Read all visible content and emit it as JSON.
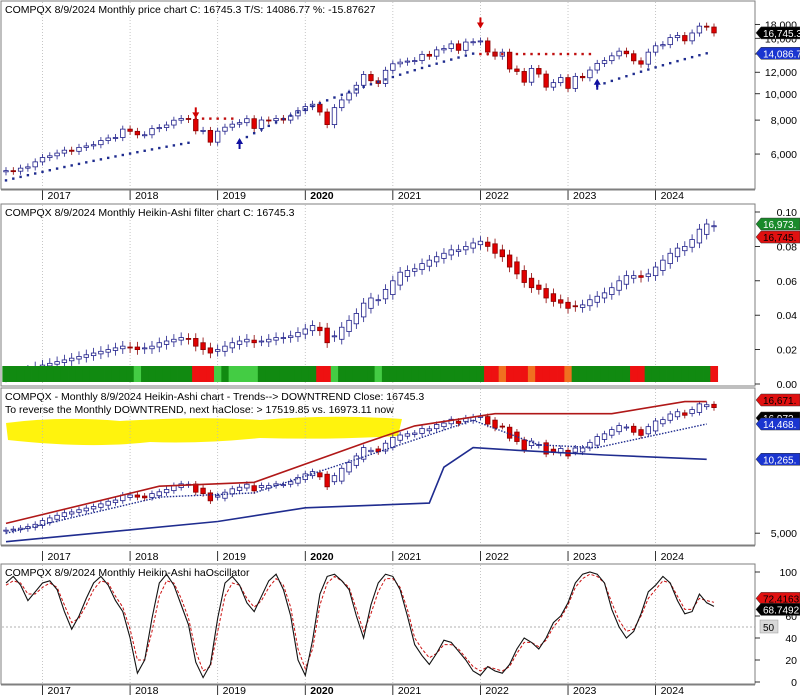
{
  "colors": {
    "bg": "#ffffff",
    "border": "#7f7f7f",
    "up_fill": "#ffffff",
    "up_stroke": "#1f1f8a",
    "down_fill": "#e00000",
    "down_stroke": "#8a0000",
    "blue_line": "#1f2c8f",
    "red_line": "#c01010",
    "dark_green": "#118a11",
    "light_green": "#44cc44",
    "red": "#ee1111",
    "orange": "#f07020",
    "highlight": "#fff200",
    "osc_line": "#111111",
    "osc_signal": "#cc1111"
  },
  "panels": [
    {
      "id": "price",
      "title": "COMPQX  8/9/2024  Monthly price chart  C: 16745.3  T/S: 14086.77  %: -15.87627",
      "y_ticks": [
        "18,000",
        "16,000",
        "14,000",
        "12,000",
        "10,000",
        "8,000",
        "6,000"
      ],
      "tags": [
        {
          "text": "16,745.3",
          "color": "#000000",
          "text_color": "#ffffff"
        },
        {
          "text": "14,086.7",
          "color": "#1a35d0",
          "text_color": "#ffffff"
        }
      ]
    },
    {
      "id": "ha_filter",
      "title": "COMPQX  8/9/2024   Monthly Heikin-Ashi filter chart  C: 16745.3",
      "y_ticks": [
        "0.10",
        "0.08",
        "0.06",
        "0.04",
        "0.02",
        "0.00"
      ],
      "tags": [
        {
          "text": "16,973.",
          "color": "#1a8a2a",
          "text_color": "#ffffff"
        },
        {
          "text": "16,745.",
          "color": "#e01010",
          "text_color": "#000000"
        }
      ]
    },
    {
      "id": "ha_trend",
      "title": "COMPQX - Monthly   8/9/2024   Heikin-Ashi chart - Trends--> DOWNTREND  Close: 16745.3",
      "note": "To reverse the Monthly DOWNTREND, next haClose: > 17519.85  vs.  16973.11 now",
      "y_ticks": [
        "5,000"
      ],
      "tags": [
        {
          "text": "16,671.",
          "color": "#e01010",
          "text_color": "#000000"
        },
        {
          "text": "16,973.",
          "color": "#000000",
          "text_color": "#ffffff"
        },
        {
          "text": "14,468.",
          "color": "#1a35d0",
          "text_color": "#ffffff"
        },
        {
          "text": "10,265.",
          "color": "#1a35d0",
          "text_color": "#ffffff"
        }
      ]
    },
    {
      "id": "osc",
      "title": "COMPQX  8/9/2024  Monthly Heikin-Ashi haOscillator",
      "y_ticks": [
        "100",
        "60",
        "40",
        "20",
        "0"
      ],
      "tags": [
        {
          "text": "72.4163",
          "color": "#e01010",
          "text_color": "#000000"
        },
        {
          "text": "68.7492",
          "color": "#000000",
          "text_color": "#ffffff"
        },
        {
          "text": "50",
          "color": "#d8d8d8",
          "text_color": "#000000"
        }
      ]
    }
  ],
  "x_axis_years": [
    "2017",
    "2018",
    "2019",
    "2020",
    "2021",
    "2022",
    "2023",
    "2024"
  ],
  "chart_data": [
    {
      "type": "candlestick",
      "title": "COMPQX  8/9/2024  Monthly price chart  C: 16745.3  T/S: 14086.77  %: -15.87627",
      "x_start": "2016-08",
      "x_end": "2024-08",
      "ylim": [
        4500,
        19000
      ],
      "close": [
        5213,
        5189,
        5324,
        5383,
        5615,
        5825,
        5912,
        6048,
        6199,
        6140,
        6348,
        6429,
        6496,
        6728,
        6874,
        6903,
        7411,
        7273,
        7063,
        7066,
        7442,
        7510,
        7672,
        7992,
        8110,
        8046,
        7306,
        7331,
        6635,
        7282,
        7533,
        7729,
        7828,
        8095,
        7453,
        8006,
        7963,
        8109,
        7999,
        8292,
        8665,
        8972,
        9151,
        8567,
        7700,
        8890,
        9490,
        10059,
        10745,
        11775,
        11168,
        10912,
        12199,
        12888,
        13071,
        13192,
        13247,
        13962,
        13748,
        14504,
        14673,
        15259,
        14449,
        15498,
        15538,
        15645,
        14240,
        13751,
        14221,
        12335,
        12081,
        11029,
        12391,
        11816,
        10576,
        10988,
        11468,
        10466,
        11585,
        11455,
        12226,
        12935,
        13240,
        13788,
        14346,
        14035,
        13219,
        12851,
        14226,
        15011,
        15164,
        16092,
        16379,
        15658,
        16735,
        17733,
        17600,
        16745
      ],
      "trailing_stop": [
        {
          "segment": "support",
          "start": "2016-08",
          "end": "2018-09",
          "from": 4800,
          "to": 6600
        },
        {
          "segment": "resistance",
          "start": "2018-10",
          "end": "2019-03",
          "value": 8100
        },
        {
          "segment": "support",
          "start": "2019-04",
          "end": "2021-12",
          "from": 6700,
          "to": 14050
        },
        {
          "segment": "resistance",
          "start": "2022-01",
          "end": "2023-04",
          "value": 14000
        },
        {
          "segment": "support",
          "start": "2023-05",
          "end": "2024-08",
          "from": 10700,
          "to": 14087
        }
      ],
      "signals": [
        {
          "date": "2018-10",
          "type": "sell"
        },
        {
          "date": "2019-04",
          "type": "buy"
        },
        {
          "date": "2022-01",
          "type": "sell"
        },
        {
          "date": "2023-05",
          "type": "buy"
        }
      ]
    },
    {
      "type": "candlestick",
      "title": "COMPQX  8/9/2024   Monthly Heikin-Ashi filter chart  C: 16745.3",
      "ylim": [
        0.0,
        0.1
      ],
      "ha_close": [
        0.005,
        0.006,
        0.007,
        0.008,
        0.01,
        0.011,
        0.012,
        0.013,
        0.014,
        0.015,
        0.016,
        0.017,
        0.018,
        0.019,
        0.02,
        0.021,
        0.022,
        0.021,
        0.02,
        0.021,
        0.022,
        0.024,
        0.025,
        0.026,
        0.027,
        0.026,
        0.022,
        0.02,
        0.018,
        0.02,
        0.022,
        0.024,
        0.025,
        0.026,
        0.024,
        0.025,
        0.026,
        0.027,
        0.027,
        0.028,
        0.03,
        0.032,
        0.034,
        0.031,
        0.024,
        0.028,
        0.033,
        0.037,
        0.041,
        0.047,
        0.05,
        0.049,
        0.055,
        0.06,
        0.065,
        0.066,
        0.067,
        0.07,
        0.072,
        0.074,
        0.076,
        0.078,
        0.078,
        0.08,
        0.082,
        0.083,
        0.08,
        0.076,
        0.074,
        0.068,
        0.064,
        0.059,
        0.056,
        0.055,
        0.05,
        0.048,
        0.047,
        0.044,
        0.045,
        0.046,
        0.049,
        0.051,
        0.053,
        0.056,
        0.06,
        0.063,
        0.063,
        0.062,
        0.064,
        0.068,
        0.072,
        0.076,
        0.079,
        0.08,
        0.084,
        0.09,
        0.093,
        0.092
      ],
      "filter_states": [
        "dark_green",
        "dark_green",
        "dark_green",
        "dark_green",
        "dark_green",
        "dark_green",
        "dark_green",
        "dark_green",
        "dark_green",
        "dark_green",
        "dark_green",
        "dark_green",
        "dark_green",
        "dark_green",
        "dark_green",
        "dark_green",
        "dark_green",
        "dark_green",
        "light_green",
        "dark_green",
        "dark_green",
        "dark_green",
        "dark_green",
        "dark_green",
        "dark_green",
        "dark_green",
        "red",
        "red",
        "red",
        "light_green",
        "dark_green",
        "light_green",
        "light_green",
        "light_green",
        "light_green",
        "dark_green",
        "dark_green",
        "dark_green",
        "dark_green",
        "dark_green",
        "dark_green",
        "dark_green",
        "dark_green",
        "red",
        "red",
        "light_green",
        "dark_green",
        "dark_green",
        "dark_green",
        "dark_green",
        "dark_green",
        "light_green",
        "dark_green",
        "dark_green",
        "dark_green",
        "dark_green",
        "dark_green",
        "dark_green",
        "dark_green",
        "dark_green",
        "dark_green",
        "dark_green",
        "dark_green",
        "dark_green",
        "dark_green",
        "dark_green",
        "red",
        "red",
        "orange",
        "red",
        "red",
        "red",
        "orange",
        "red",
        "red",
        "red",
        "red",
        "orange",
        "dark_green",
        "dark_green",
        "dark_green",
        "dark_green",
        "dark_green",
        "dark_green",
        "dark_green",
        "dark_green",
        "red",
        "red",
        "dark_green",
        "dark_green",
        "dark_green",
        "dark_green",
        "dark_green",
        "dark_green",
        "dark_green",
        "dark_green",
        "dark_green",
        "red"
      ]
    },
    {
      "type": "candlestick",
      "title": "COMPQX - Monthly   8/9/2024   Heikin-Ashi chart - Trends--> DOWNTREND  Close: 16745.3",
      "ylim": [
        4500,
        19000
      ],
      "ha_close": [
        5150,
        5200,
        5250,
        5330,
        5450,
        5650,
        5800,
        5950,
        6100,
        6150,
        6280,
        6380,
        6480,
        6650,
        6820,
        6900,
        7250,
        7250,
        7100,
        7050,
        7350,
        7480,
        7650,
        7950,
        8080,
        8050,
        7450,
        7350,
        6850,
        7200,
        7450,
        7700,
        7820,
        8050,
        7550,
        7950,
        7950,
        8080,
        8020,
        8250,
        8600,
        8900,
        9100,
        8650,
        7850,
        8750,
        9400,
        9950,
        10600,
        11500,
        11200,
        11050,
        12000,
        12700,
        13000,
        13150,
        13250,
        13850,
        13800,
        14400,
        14600,
        15150,
        14550,
        15350,
        15500,
        15600,
        14450,
        13900,
        14150,
        12600,
        12200,
        11250,
        12250,
        11850,
        10800,
        11000,
        11400,
        10600,
        11450,
        11450,
        12100,
        12800,
        13150,
        13700,
        14250,
        14050,
        13350,
        12950,
        14100,
        14900,
        15100,
        15950,
        16300,
        15750,
        16650,
        17600,
        17450,
        16973
      ],
      "upper_band": [
        {
          "date": "2016-08",
          "value": 5500
        },
        {
          "date": "2018-05",
          "value": 7900
        },
        {
          "date": "2019-06",
          "value": 8200
        },
        {
          "date": "2020-09",
          "value": 12000
        },
        {
          "date": "2021-04",
          "value": 14200
        },
        {
          "date": "2022-03",
          "value": 16000
        },
        {
          "date": "2023-07",
          "value": 16000
        },
        {
          "date": "2024-05",
          "value": 18000
        },
        {
          "date": "2024-08",
          "value": 18000
        }
      ],
      "middle_band": [
        {
          "date": "2016-08",
          "value": 5000
        },
        {
          "date": "2018-05",
          "value": 7100
        },
        {
          "date": "2019-06",
          "value": 7400
        },
        {
          "date": "2020-09",
          "value": 10500
        },
        {
          "date": "2021-12",
          "value": 15000
        },
        {
          "date": "2022-09",
          "value": 11800
        },
        {
          "date": "2023-05",
          "value": 11500
        },
        {
          "date": "2024-08",
          "value": 14468
        }
      ],
      "lower_band": [
        {
          "date": "2016-08",
          "value": 4600
        },
        {
          "date": "2019-01",
          "value": 5600
        },
        {
          "date": "2020-01",
          "value": 6400
        },
        {
          "date": "2021-06",
          "value": 6700
        },
        {
          "date": "2021-08",
          "value": 9500
        },
        {
          "date": "2021-12",
          "value": 11500
        },
        {
          "date": "2022-06",
          "value": 11200
        },
        {
          "date": "2023-06",
          "value": 10700
        },
        {
          "date": "2024-08",
          "value": 10265
        }
      ]
    },
    {
      "type": "line",
      "title": "COMPQX  8/9/2024  Monthly Heikin-Ashi haOscillator",
      "ylim": [
        0,
        100
      ],
      "reference_line": 50,
      "series": [
        {
          "name": "haOscillator",
          "values": [
            90,
            96,
            88,
            74,
            82,
            90,
            92,
            84,
            64,
            48,
            60,
            76,
            90,
            96,
            88,
            74,
            64,
            40,
            8,
            20,
            58,
            90,
            98,
            88,
            70,
            52,
            18,
            4,
            16,
            58,
            90,
            96,
            88,
            72,
            64,
            78,
            92,
            98,
            84,
            60,
            20,
            6,
            38,
            80,
            96,
            98,
            92,
            84,
            60,
            40,
            70,
            90,
            98,
            96,
            84,
            60,
            34,
            24,
            16,
            26,
            38,
            36,
            28,
            20,
            10,
            6,
            14,
            10,
            8,
            16,
            30,
            40,
            36,
            30,
            40,
            54,
            60,
            72,
            90,
            98,
            100,
            98,
            90,
            66,
            50,
            40,
            46,
            62,
            82,
            88,
            96,
            90,
            74,
            62,
            64,
            80,
            72,
            68.75
          ]
        },
        {
          "name": "signal",
          "values": [
            88,
            92,
            90,
            80,
            80,
            86,
            90,
            86,
            70,
            54,
            58,
            70,
            84,
            92,
            90,
            78,
            68,
            48,
            20,
            20,
            46,
            78,
            92,
            90,
            76,
            58,
            28,
            10,
            14,
            46,
            78,
            90,
            88,
            76,
            68,
            74,
            86,
            94,
            88,
            68,
            30,
            12,
            30,
            70,
            90,
            96,
            92,
            86,
            66,
            46,
            62,
            82,
            94,
            94,
            86,
            66,
            40,
            30,
            22,
            26,
            34,
            34,
            30,
            22,
            14,
            10,
            14,
            12,
            10,
            14,
            26,
            36,
            36,
            32,
            38,
            50,
            58,
            70,
            86,
            94,
            98,
            96,
            90,
            72,
            56,
            46,
            48,
            60,
            76,
            84,
            92,
            90,
            78,
            66,
            66,
            76,
            74,
            72.42
          ]
        }
      ]
    }
  ]
}
